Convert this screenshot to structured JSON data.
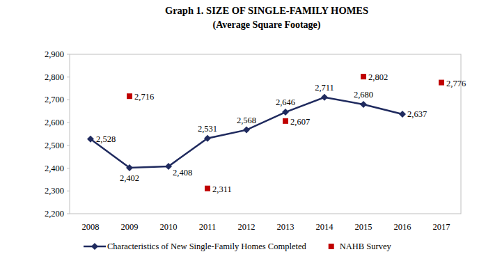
{
  "chart_data": {
    "type": "line",
    "title": "Graph 1. SIZE OF SINGLE-FAMILY HOMES",
    "subtitle": "(Average Square Footage)",
    "categories": [
      "2008",
      "2009",
      "2010",
      "2011",
      "2012",
      "2013",
      "2014",
      "2015",
      "2016",
      "2017"
    ],
    "series": [
      {
        "name": "Characteristics of New Single-Family Homes Completed",
        "type": "line",
        "marker": "diamond",
        "color": "#1f2a5e",
        "values": [
          2528,
          2402,
          2408,
          2531,
          2568,
          2646,
          2711,
          2680,
          2637,
          null
        ],
        "value_labels": [
          "2,528",
          "2,402",
          "2,408",
          "2,531",
          "2,568",
          "2,646",
          "2,711",
          "2,680",
          "2,637",
          null
        ]
      },
      {
        "name": "NAHB Survey",
        "type": "scatter",
        "marker": "square",
        "color": "#c00000",
        "values": [
          null,
          2716,
          null,
          2311,
          null,
          2607,
          null,
          2802,
          null,
          2776
        ],
        "value_labels": [
          null,
          "2,716",
          null,
          "2,311",
          null,
          "2,607",
          null,
          "2,802",
          null,
          "2,776"
        ]
      }
    ],
    "ylim": [
      2200,
      2900
    ],
    "yticks": [
      {
        "value": 2200,
        "label": "2,200"
      },
      {
        "value": 2300,
        "label": "2,300"
      },
      {
        "value": 2400,
        "label": "2,400"
      },
      {
        "value": 2500,
        "label": "2,500"
      },
      {
        "value": 2600,
        "label": "2,600"
      },
      {
        "value": 2700,
        "label": "2,700"
      },
      {
        "value": 2800,
        "label": "2,800"
      },
      {
        "value": 2900,
        "label": "2,900"
      }
    ],
    "grid": false,
    "legend": "bottom",
    "data_labels": true
  }
}
